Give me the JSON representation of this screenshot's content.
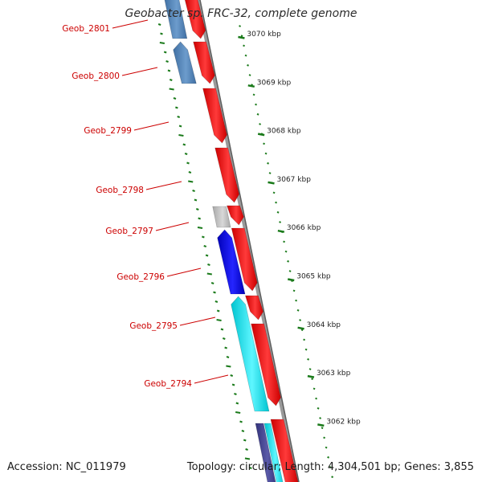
{
  "title": "Geobacter sp. FRC-32, complete genome",
  "accession_text": "Accession: NC_011979",
  "topology_text": "Topology: circular; Length: 4,304,501 bp; Genes: 3,855",
  "colors": {
    "gene_label": "#cc0000",
    "tick": "#1a7a1a",
    "forward_gene": "#ee0000",
    "backbone": "#888888"
  },
  "kbp_ticks": [
    {
      "kbp": 3070,
      "label": "3070 kbp"
    },
    {
      "kbp": 3069,
      "label": "3069 kbp"
    },
    {
      "kbp": 3068,
      "label": "3068 kbp"
    },
    {
      "kbp": 3067,
      "label": "3067 kbp"
    },
    {
      "kbp": 3066,
      "label": "3066 kbp"
    },
    {
      "kbp": 3065,
      "label": "3065 kbp"
    },
    {
      "kbp": 3064,
      "label": "3064 kbp"
    },
    {
      "kbp": 3063,
      "label": "3063 kbp"
    },
    {
      "kbp": 3062,
      "label": "3062 kbp"
    }
  ],
  "genes": [
    {
      "label": "Geob_2801",
      "strand": "reverse",
      "color": "#4a7fb5"
    },
    {
      "label": "Geob_2800",
      "strand": "reverse",
      "color": "#4a7fb5"
    },
    {
      "label": "Geob_2799",
      "strand": "forward",
      "color": "#ee0000"
    },
    {
      "label": "Geob_2798",
      "strand": "forward",
      "color": "#ee0000"
    },
    {
      "label": "Geob_2797",
      "strand": "reverse",
      "color": "#bbbbbb"
    },
    {
      "label": "Geob_2796",
      "strand": "reverse",
      "color": "#0000dd"
    },
    {
      "label": "Geob_2795",
      "strand": "reverse",
      "color": "#00e5ee"
    },
    {
      "label": "Geob_2794",
      "strand": "forward",
      "color": "#ee0000"
    }
  ]
}
